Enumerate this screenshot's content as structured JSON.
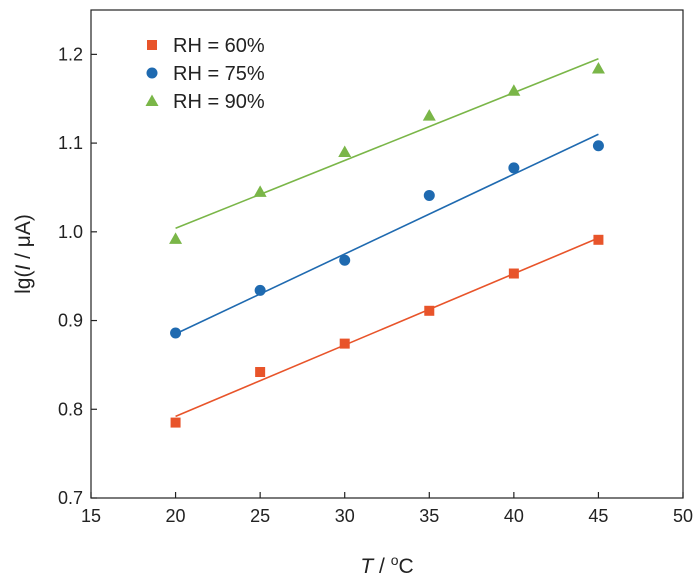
{
  "chart_data": {
    "type": "scatter",
    "title": "",
    "xlabel": {
      "symbol": "T",
      "rest": " / ",
      "sup": "o",
      "unit": "C"
    },
    "ylabel": {
      "pre": "lg(",
      "symbol": "I",
      "rest": " / μA)"
    },
    "xlim": [
      15,
      50
    ],
    "ylim": [
      0.7,
      1.25
    ],
    "xticks": [
      "15",
      "20",
      "25",
      "30",
      "35",
      "40",
      "45",
      "50"
    ],
    "yticks": [
      "0.7",
      "0.8",
      "0.9",
      "1.0",
      "1.1",
      "1.2"
    ],
    "grid": false,
    "legend_position": "top-left",
    "x": [
      20,
      25,
      30,
      35,
      40,
      45
    ],
    "series": [
      {
        "name": "RH = 60%",
        "marker": "square",
        "color": "#E8542A",
        "values": [
          0.785,
          0.842,
          0.874,
          0.911,
          0.953,
          0.991
        ],
        "fit": {
          "x": [
            20,
            45
          ],
          "y": [
            0.792,
            0.993
          ]
        }
      },
      {
        "name": "RH = 75%",
        "marker": "circle",
        "color": "#1F6AB0",
        "values": [
          0.886,
          0.934,
          0.968,
          1.041,
          1.072,
          1.097
        ],
        "fit": {
          "x": [
            20,
            45
          ],
          "y": [
            0.885,
            1.11
          ]
        }
      },
      {
        "name": "RH = 90%",
        "marker": "triangle",
        "color": "#7AB648",
        "values": [
          0.992,
          1.045,
          1.09,
          1.131,
          1.159,
          1.184
        ],
        "fit": {
          "x": [
            20,
            45
          ],
          "y": [
            1.004,
            1.195
          ]
        }
      }
    ]
  }
}
